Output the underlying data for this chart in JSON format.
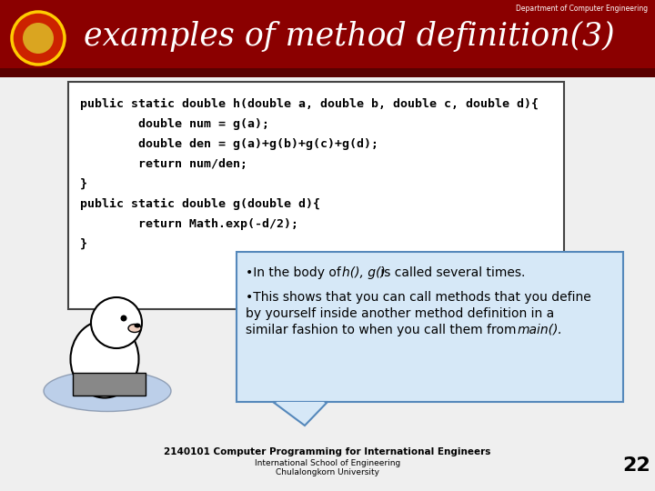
{
  "title": "examples of method definition(3)",
  "dept_label": "Department of Computer Engineering",
  "header_bg": "#8B0000",
  "header_dark": "#5a0000",
  "slide_bg": "#EFEFEF",
  "code_lines": [
    "public static double h(double a, double b, double c, double d){",
    "        double num = g(a);",
    "        double den = g(a)+g(b)+g(c)+g(d);",
    "        return num/den;",
    "}",
    "public static double g(double d){",
    "        return Math.exp(-d/2);",
    "}"
  ],
  "bullet1_pre": "•In the body of ",
  "bullet1_italic": "h(), g()",
  "bullet1_post": " is called several times.",
  "bullet2_line1": "•This shows that you can call methods that you define",
  "bullet2_line2": "by yourself inside another method definition in a",
  "bullet2_line3_pre": "similar fashion to when you call them from ",
  "bullet2_line3_italic": "main().",
  "footer_line1": "2140101 Computer Programming for International Engineers",
  "footer_line2": "International School of Engineering",
  "footer_line3": "Chulalongkorn University",
  "page_num": "22",
  "callout_bg": "#D6E8F7",
  "callout_border": "#5588BB",
  "code_box_bg": "#FFFFFF",
  "code_box_border": "#444444"
}
